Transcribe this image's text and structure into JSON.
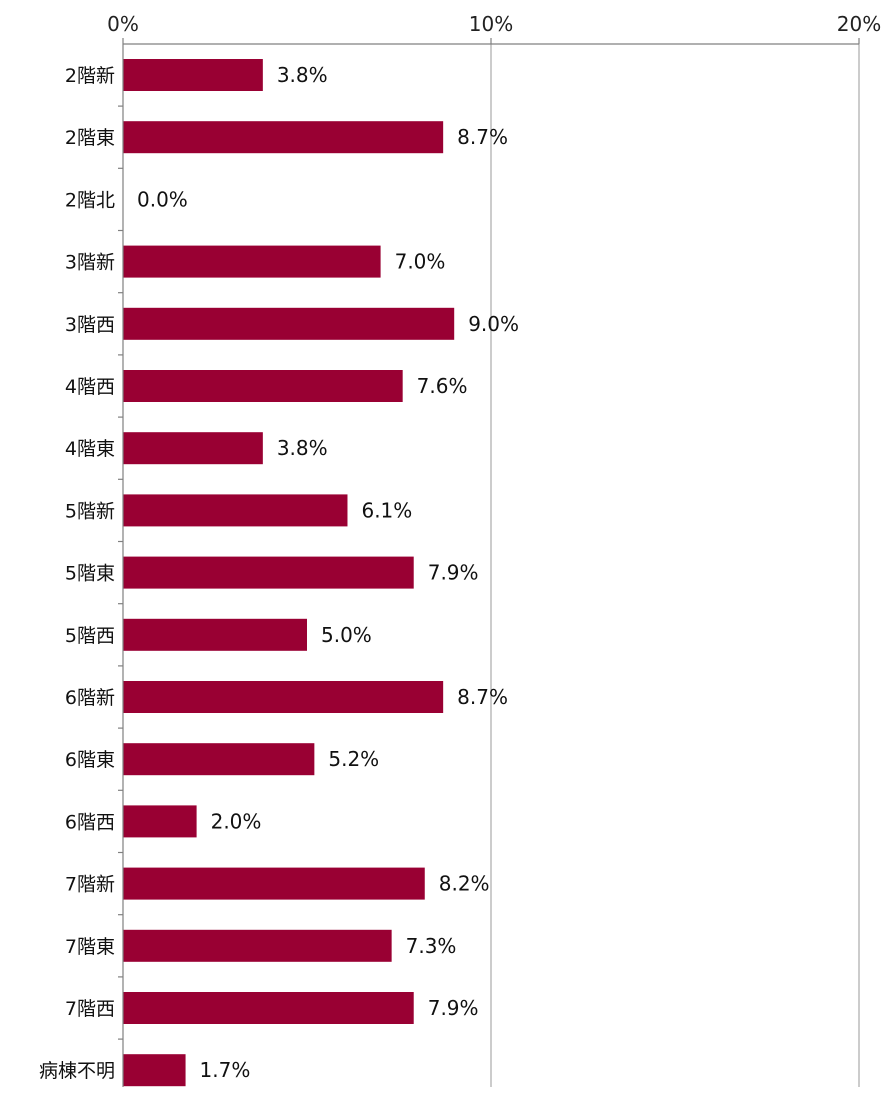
{
  "chart_data": {
    "type": "bar",
    "orientation": "horizontal",
    "title": "",
    "xlabel": "",
    "ylabel": "",
    "xlim": [
      0,
      20
    ],
    "x_ticks": [
      {
        "value": 0,
        "label": "0%"
      },
      {
        "value": 10,
        "label": "10%"
      },
      {
        "value": 20,
        "label": "20%"
      }
    ],
    "axis_position": "top",
    "grid": true,
    "legend": "none",
    "bar_color": "#990033",
    "categories": [
      "2階新",
      "2階東",
      "2階北",
      "3階新",
      "3階西",
      "4階西",
      "4階東",
      "5階新",
      "5階東",
      "5階西",
      "6階新",
      "6階東",
      "6階西",
      "7階新",
      "7階東",
      "7階西",
      "病棟不明"
    ],
    "values": [
      3.8,
      8.7,
      0.0,
      7.0,
      9.0,
      7.6,
      3.8,
      6.1,
      7.9,
      5.0,
      8.7,
      5.2,
      2.0,
      8.2,
      7.3,
      7.9,
      1.7
    ],
    "data_labels": [
      "3.8%",
      "8.7%",
      "0.0%",
      "7.0%",
      "9.0%",
      "7.6%",
      "3.8%",
      "6.1%",
      "7.9%",
      "5.0%",
      "8.7%",
      "5.2%",
      "2.0%",
      "8.2%",
      "7.3%",
      "7.9%",
      "1.7%"
    ]
  }
}
